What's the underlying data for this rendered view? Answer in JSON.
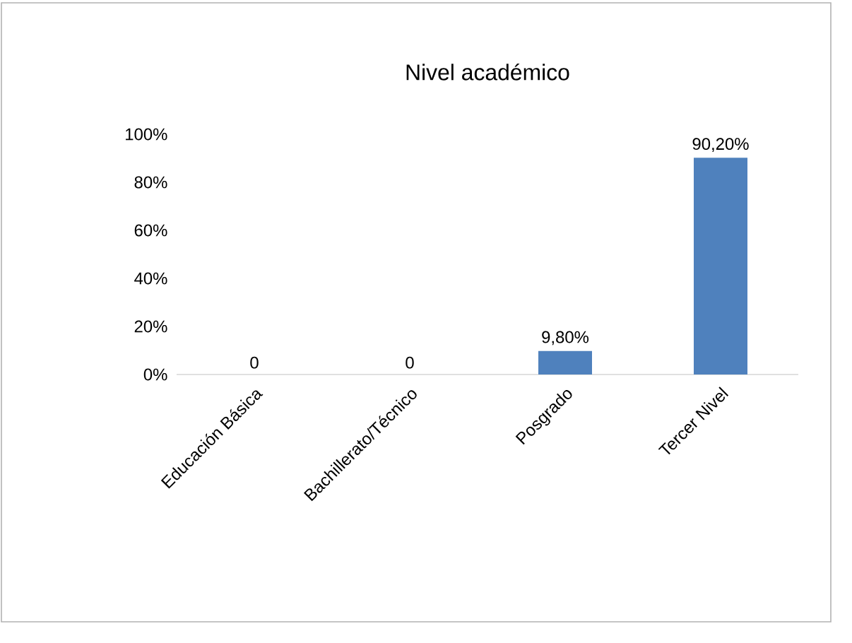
{
  "chart_data": {
    "type": "bar",
    "title": "Nivel académico",
    "categories": [
      "Educación Básica",
      "Bachillerato/Técnico",
      "Posgrado",
      "Tercer Nivel"
    ],
    "values": [
      0,
      0,
      9.8,
      90.2
    ],
    "value_labels": [
      "0",
      "0",
      "9,80%",
      "90,20%"
    ],
    "color": "#4f81bd",
    "ylim": [
      0,
      100
    ],
    "yticks": [
      {
        "value": 0,
        "label": "0%"
      },
      {
        "value": 20,
        "label": "20%"
      },
      {
        "value": 40,
        "label": "40%"
      },
      {
        "value": 60,
        "label": "60%"
      },
      {
        "value": 80,
        "label": "80%"
      },
      {
        "value": 100,
        "label": "100%"
      }
    ],
    "grid": false
  }
}
